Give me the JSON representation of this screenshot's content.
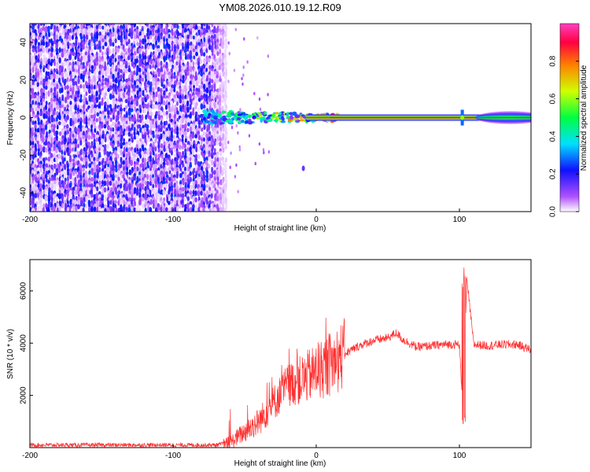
{
  "title": "YM08.2026.010.19.12.R09",
  "chart_data": [
    {
      "type": "heatmap",
      "xlabel": "Height of straight line (km)",
      "ylabel": "Frequency (Hz)",
      "xlim": [
        -200,
        150
      ],
      "ylim": [
        -50,
        50
      ],
      "x_ticks": [
        -200,
        -100,
        0,
        100
      ],
      "y_ticks": [
        -40,
        -20,
        0,
        20,
        40
      ],
      "colorbar": {
        "label": "Normalized spectral amplitude",
        "range": [
          0,
          1
        ],
        "ticks": [
          0.0,
          0.2,
          0.4,
          0.6,
          0.8
        ],
        "colors": [
          "#ffffff",
          "#b050ff",
          "#1010ff",
          "#00e0ff",
          "#00ff40",
          "#d0ff00",
          "#ff8000",
          "#ff0040",
          "#ff40c0"
        ]
      },
      "regions": [
        {
          "name": "noise",
          "x_range": [
            -200,
            -63
          ],
          "freq_range": [
            -50,
            50
          ],
          "amplitude": 0.2
        },
        {
          "name": "onset",
          "x_range": [
            -80,
            15
          ],
          "freq_range": [
            -3,
            3
          ],
          "amplitude": 0.6
        },
        {
          "name": "carrier",
          "x_range": [
            15,
            150
          ],
          "freq": 0,
          "amplitude": 0.95
        }
      ]
    },
    {
      "type": "line",
      "xlabel": "Height of straight line (km)",
      "ylabel": "SNR (10 * v/v)",
      "xlim": [
        -200,
        150
      ],
      "ylim": [
        0,
        7200
      ],
      "x_ticks": [
        -200,
        -100,
        0,
        100
      ],
      "y_ticks": [
        2000,
        4000,
        6000
      ],
      "color": "#ff3030",
      "series": [
        {
          "x": [
            -200,
            -150,
            -100,
            -70,
            -60,
            -50,
            -40,
            -30,
            -20,
            -10,
            0,
            10,
            20,
            30,
            40,
            50,
            56,
            60,
            70,
            80,
            90,
            100,
            103,
            105,
            110,
            120,
            130,
            140,
            150
          ],
          "y": [
            100,
            100,
            100,
            100,
            200,
            600,
            1000,
            1700,
            2400,
            2600,
            2900,
            3200,
            3600,
            3900,
            4100,
            4200,
            4400,
            4150,
            3850,
            3900,
            3950,
            3950,
            700,
            6500,
            3950,
            3900,
            3950,
            3950,
            3750
          ]
        }
      ]
    }
  ]
}
